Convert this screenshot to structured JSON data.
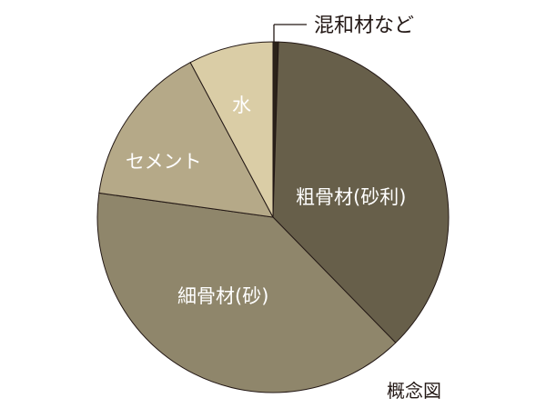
{
  "chart_data": {
    "type": "pie",
    "title": "",
    "note": "概念図",
    "start": "top",
    "direction": "clockwise",
    "slices": [
      {
        "label": "混和材など",
        "value": 0.5,
        "color": "#2b2219",
        "label_outside": true
      },
      {
        "label": "粗骨材(砂利)",
        "value": 37.2,
        "color": "#675f4a"
      },
      {
        "label": "細骨材(砂)",
        "value": 39.5,
        "color": "#8f866b"
      },
      {
        "label": "セメント",
        "value": 15.0,
        "color": "#b5a988"
      },
      {
        "label": "水",
        "value": 7.8,
        "color": "#dacda6"
      }
    ]
  }
}
